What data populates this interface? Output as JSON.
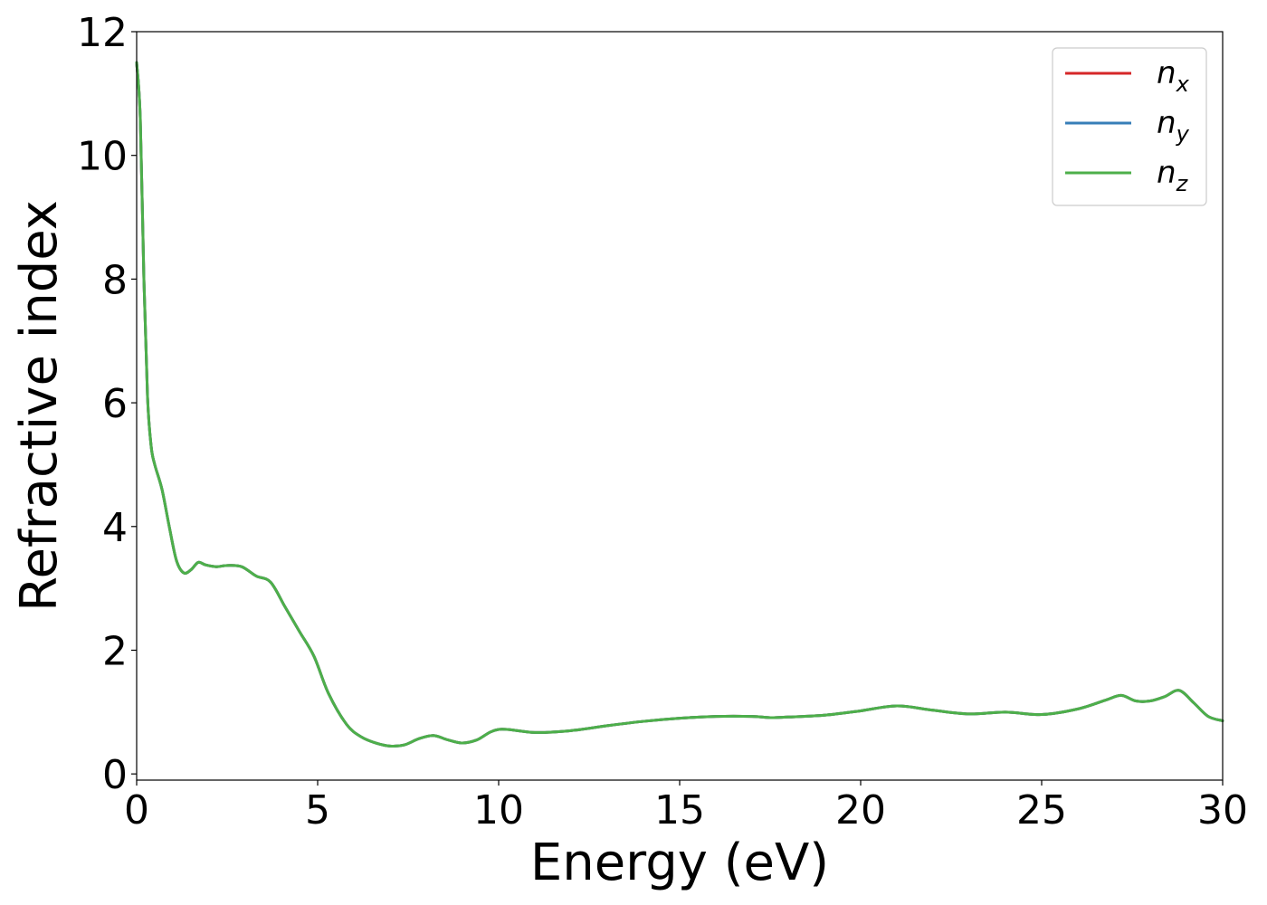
{
  "chart_data": {
    "type": "line",
    "title": "",
    "xlabel": "Energy (eV)",
    "ylabel": "Refractive index",
    "xlim": [
      0,
      30
    ],
    "ylim": [
      -0.1,
      12
    ],
    "xticks": [
      0,
      5,
      10,
      15,
      20,
      25,
      30
    ],
    "yticks": [
      0,
      2,
      4,
      6,
      8,
      10,
      12
    ],
    "grid": false,
    "legend_position": "top-right",
    "series": [
      {
        "name": "n_x",
        "name_base": "n",
        "name_sub": "x",
        "color": "#d62728",
        "x": [
          0,
          0.1,
          0.2,
          0.3,
          0.4,
          0.5,
          0.7,
          0.9,
          1.1,
          1.3,
          1.5,
          1.7,
          1.9,
          2.2,
          2.5,
          2.9,
          3.3,
          3.7,
          4.1,
          4.5,
          4.9,
          5.3,
          5.8,
          6.2,
          6.6,
          7.0,
          7.4,
          7.8,
          8.2,
          8.6,
          9.0,
          9.4,
          10.0,
          11.0,
          12.0,
          13.0,
          14.0,
          15.0,
          16.0,
          17.0,
          17.5,
          18.0,
          19.0,
          20.0,
          21.0,
          22.0,
          23.0,
          24.0,
          25.0,
          26.0,
          26.8,
          27.2,
          27.6,
          28.0,
          28.4,
          28.8,
          29.2,
          29.6,
          30.0
        ],
        "y": [
          11.5,
          10.6,
          8.0,
          6.1,
          5.3,
          5.0,
          4.6,
          4.0,
          3.45,
          3.25,
          3.3,
          3.42,
          3.38,
          3.35,
          3.37,
          3.35,
          3.2,
          3.1,
          2.7,
          2.3,
          1.9,
          1.3,
          0.8,
          0.6,
          0.5,
          0.45,
          0.47,
          0.57,
          0.62,
          0.55,
          0.5,
          0.55,
          0.72,
          0.67,
          0.7,
          0.78,
          0.85,
          0.9,
          0.93,
          0.93,
          0.91,
          0.92,
          0.95,
          1.02,
          1.1,
          1.03,
          0.97,
          1.0,
          0.96,
          1.05,
          1.2,
          1.27,
          1.18,
          1.18,
          1.25,
          1.35,
          1.15,
          0.93,
          0.86
        ]
      },
      {
        "name": "n_y",
        "name_base": "n",
        "name_sub": "y",
        "color": "#377eb8",
        "x": [
          0,
          0.1,
          0.2,
          0.3,
          0.4,
          0.5,
          0.7,
          0.9,
          1.1,
          1.3,
          1.5,
          1.7,
          1.9,
          2.2,
          2.5,
          2.9,
          3.3,
          3.7,
          4.1,
          4.5,
          4.9,
          5.3,
          5.8,
          6.2,
          6.6,
          7.0,
          7.4,
          7.8,
          8.2,
          8.6,
          9.0,
          9.4,
          10.0,
          11.0,
          12.0,
          13.0,
          14.0,
          15.0,
          16.0,
          17.0,
          17.5,
          18.0,
          19.0,
          20.0,
          21.0,
          22.0,
          23.0,
          24.0,
          25.0,
          26.0,
          26.8,
          27.2,
          27.6,
          28.0,
          28.4,
          28.8,
          29.2,
          29.6,
          30.0
        ],
        "y": [
          11.5,
          10.6,
          8.0,
          6.1,
          5.3,
          5.0,
          4.6,
          4.0,
          3.45,
          3.25,
          3.3,
          3.42,
          3.38,
          3.35,
          3.37,
          3.35,
          3.2,
          3.1,
          2.7,
          2.3,
          1.9,
          1.3,
          0.8,
          0.6,
          0.5,
          0.45,
          0.47,
          0.57,
          0.62,
          0.55,
          0.5,
          0.55,
          0.72,
          0.67,
          0.7,
          0.78,
          0.85,
          0.9,
          0.93,
          0.93,
          0.91,
          0.92,
          0.95,
          1.02,
          1.1,
          1.03,
          0.97,
          1.0,
          0.96,
          1.05,
          1.2,
          1.27,
          1.18,
          1.18,
          1.25,
          1.35,
          1.15,
          0.93,
          0.86
        ]
      },
      {
        "name": "n_z",
        "name_base": "n",
        "name_sub": "z",
        "color": "#4daf4a",
        "x": [
          0,
          0.1,
          0.2,
          0.3,
          0.4,
          0.5,
          0.7,
          0.9,
          1.1,
          1.3,
          1.5,
          1.7,
          1.9,
          2.2,
          2.5,
          2.9,
          3.3,
          3.7,
          4.1,
          4.5,
          4.9,
          5.3,
          5.8,
          6.2,
          6.6,
          7.0,
          7.4,
          7.8,
          8.2,
          8.6,
          9.0,
          9.4,
          10.0,
          11.0,
          12.0,
          13.0,
          14.0,
          15.0,
          16.0,
          17.0,
          17.5,
          18.0,
          19.0,
          20.0,
          21.0,
          22.0,
          23.0,
          24.0,
          25.0,
          26.0,
          26.8,
          27.2,
          27.6,
          28.0,
          28.4,
          28.8,
          29.2,
          29.6,
          30.0
        ],
        "y": [
          11.5,
          10.6,
          8.0,
          6.1,
          5.3,
          5.0,
          4.6,
          4.0,
          3.45,
          3.25,
          3.3,
          3.42,
          3.38,
          3.35,
          3.37,
          3.35,
          3.2,
          3.1,
          2.7,
          2.3,
          1.9,
          1.3,
          0.8,
          0.6,
          0.5,
          0.45,
          0.47,
          0.57,
          0.62,
          0.55,
          0.5,
          0.55,
          0.72,
          0.67,
          0.7,
          0.78,
          0.85,
          0.9,
          0.93,
          0.93,
          0.91,
          0.92,
          0.95,
          1.02,
          1.1,
          1.03,
          0.97,
          1.0,
          0.96,
          1.05,
          1.2,
          1.27,
          1.18,
          1.18,
          1.25,
          1.35,
          1.15,
          0.93,
          0.86
        ]
      }
    ]
  }
}
